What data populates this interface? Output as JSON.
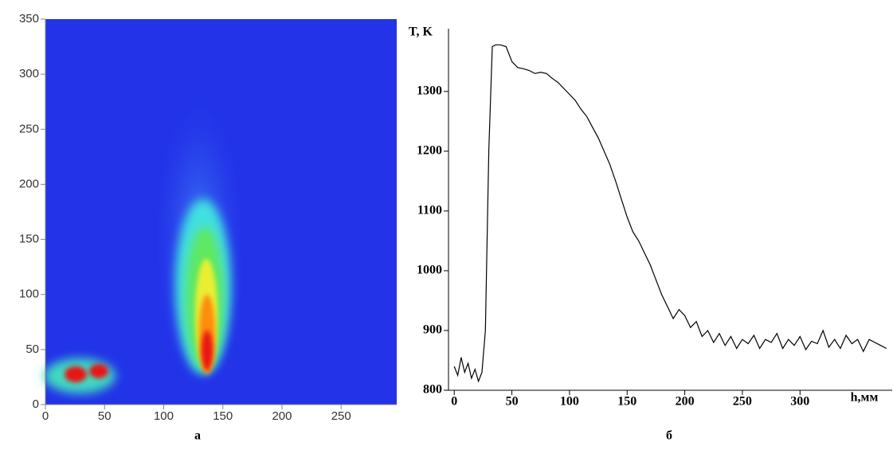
{
  "chart_data": [
    {
      "type": "heatmap",
      "caption": "а",
      "xlim": [
        0,
        297
      ],
      "ylim": [
        0,
        350
      ],
      "xticks": [
        0,
        50,
        100,
        150,
        200,
        250
      ],
      "yticks": [
        0,
        50,
        100,
        150,
        200,
        250,
        300,
        350
      ]
    },
    {
      "type": "line",
      "caption": "б",
      "xlabel": "h,мм",
      "ylabel": "T, K",
      "xlim": [
        -5,
        380
      ],
      "ylim": [
        800,
        1405
      ],
      "xticks": [
        0,
        50,
        100,
        150,
        200,
        250,
        300
      ],
      "yticks": [
        800,
        900,
        1000,
        1100,
        1200,
        1300
      ],
      "x": [
        0,
        3,
        6,
        9,
        12,
        15,
        18,
        21,
        24,
        27,
        30,
        33,
        36,
        40,
        45,
        50,
        55,
        60,
        65,
        70,
        75,
        80,
        85,
        90,
        95,
        100,
        105,
        110,
        115,
        120,
        125,
        130,
        135,
        140,
        145,
        150,
        155,
        160,
        165,
        170,
        175,
        180,
        185,
        190,
        195,
        200,
        205,
        210,
        215,
        220,
        225,
        230,
        235,
        240,
        245,
        250,
        255,
        260,
        265,
        270,
        275,
        280,
        285,
        290,
        295,
        300,
        305,
        310,
        315,
        320,
        325,
        330,
        335,
        340,
        345,
        350,
        355,
        360,
        365,
        370,
        375
      ],
      "series": [
        {
          "color": "#000000",
          "values": [
            840,
            825,
            855,
            830,
            845,
            820,
            835,
            815,
            830,
            900,
            1200,
            1375,
            1378,
            1378,
            1375,
            1350,
            1340,
            1338,
            1335,
            1330,
            1332,
            1330,
            1322,
            1315,
            1305,
            1295,
            1285,
            1270,
            1258,
            1240,
            1222,
            1200,
            1178,
            1150,
            1120,
            1090,
            1065,
            1050,
            1030,
            1010,
            985,
            960,
            940,
            920,
            935,
            925,
            905,
            915,
            890,
            900,
            880,
            895,
            875,
            890,
            870,
            885,
            878,
            892,
            870,
            885,
            880,
            895,
            870,
            885,
            875,
            890,
            868,
            882,
            878,
            900,
            872,
            885,
            870,
            892,
            878,
            885,
            865,
            885,
            880,
            875,
            870
          ]
        }
      ]
    }
  ]
}
